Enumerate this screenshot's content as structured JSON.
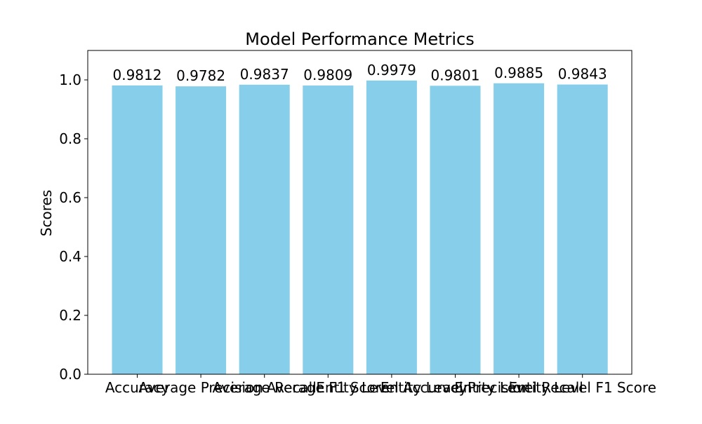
{
  "chart_data": {
    "type": "bar",
    "title": "Model Performance Metrics",
    "xlabel": "",
    "ylabel": "Scores",
    "categories": [
      "Accuracy",
      "Average Precision",
      "Average Recall",
      "Average F1 Score",
      "Entity Level Accuracy",
      "Entity Level Precision",
      "Entity Level Recall",
      "Entity Level F1 Score"
    ],
    "values": [
      0.9812,
      0.9782,
      0.9837,
      0.9809,
      0.9979,
      0.9801,
      0.9885,
      0.9843
    ],
    "value_labels": [
      "0.9812",
      "0.9782",
      "0.9837",
      "0.9809",
      "0.9979",
      "0.9801",
      "0.9885",
      "0.9843"
    ],
    "ylim": [
      0,
      1.1
    ],
    "yticks": [
      0.0,
      0.2,
      0.4,
      0.6,
      0.8,
      1.0
    ],
    "ytick_labels": [
      "0.0",
      "0.2",
      "0.4",
      "0.6",
      "0.8",
      "1.0"
    ],
    "bar_color": "#87ceeb",
    "grid": false,
    "legend": "none"
  }
}
